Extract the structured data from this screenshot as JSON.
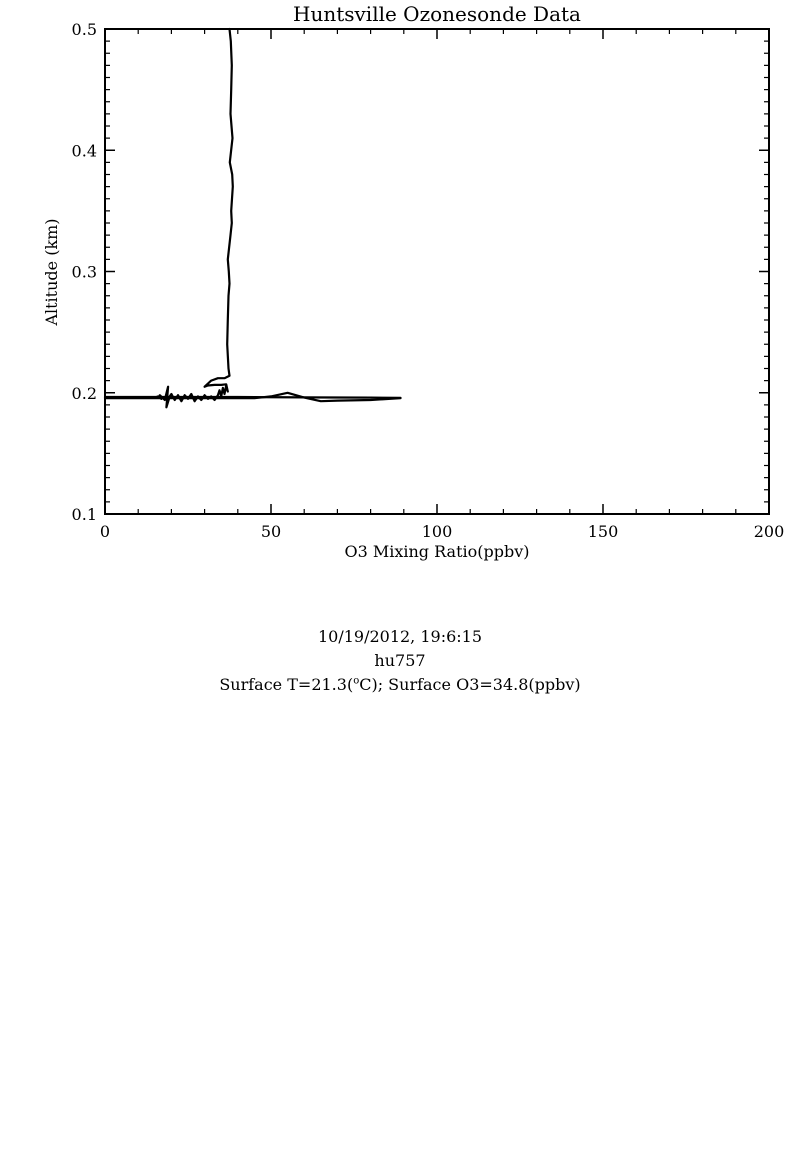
{
  "chart_data": {
    "type": "line",
    "title": "Huntsville Ozonesonde Data",
    "xlabel": "O3 Mixing Ratio(ppbv)",
    "ylabel": "Altitude (km)",
    "xlim": [
      0,
      200
    ],
    "ylim": [
      0.1,
      0.5
    ],
    "x_ticks": [
      "0",
      "50",
      "100",
      "150",
      "200"
    ],
    "y_ticks": [
      "0.1",
      "0.2",
      "0.3",
      "0.4",
      "0.5"
    ],
    "grid": false,
    "series": [
      {
        "color": "#000000",
        "x": [
          0,
          15,
          16,
          17,
          16.5,
          18,
          19,
          18.5,
          19.5,
          20,
          21,
          22,
          23,
          24,
          25,
          26,
          27,
          28,
          29,
          30,
          31,
          32,
          33,
          34,
          34.5,
          35,
          35.5,
          36,
          36.5,
          37,
          36.5,
          35,
          33,
          31,
          30,
          32,
          34,
          36,
          37.5,
          37.2,
          36.8,
          37,
          37.2,
          37.5,
          37.3,
          37,
          37.8,
          38.2,
          38,
          38.5,
          38.3,
          37.6,
          38.4,
          38.1,
          37.8,
          38,
          38.2,
          37.9,
          37.5
        ],
        "y": [
          0.196,
          0.196,
          0.197,
          0.195,
          0.198,
          0.194,
          0.205,
          0.188,
          0.197,
          0.199,
          0.194,
          0.198,
          0.193,
          0.198,
          0.195,
          0.199,
          0.193,
          0.197,
          0.194,
          0.198,
          0.195,
          0.197,
          0.194,
          0.198,
          0.202,
          0.197,
          0.204,
          0.199,
          0.206,
          0.201,
          0.207,
          0.2065,
          0.2065,
          0.206,
          0.205,
          0.21,
          0.212,
          0.212,
          0.214,
          0.22,
          0.24,
          0.26,
          0.28,
          0.29,
          0.3,
          0.31,
          0.33,
          0.34,
          0.35,
          0.37,
          0.38,
          0.39,
          0.41,
          0.42,
          0.43,
          0.45,
          0.47,
          0.49,
          0.5
        ]
      },
      {
        "color": "#000000",
        "x": [
          0,
          20,
          30,
          38,
          45,
          50,
          55,
          60,
          65,
          70,
          80,
          89
        ],
        "y": [
          0.1955,
          0.1955,
          0.1955,
          0.1955,
          0.1955,
          0.197,
          0.2,
          0.196,
          0.193,
          0.1935,
          0.194,
          0.1955
        ]
      },
      {
        "color": "#000000",
        "x": [
          0,
          20,
          40,
          60,
          80,
          89
        ],
        "y": [
          0.1965,
          0.1965,
          0.1965,
          0.1962,
          0.196,
          0.1958
        ]
      }
    ]
  },
  "caption": {
    "date_time": "10/19/2012, 19:6:15",
    "sonde_id": "hu757",
    "surface_t_prefix": "Surface T=21.3(",
    "surface_t_sup": "o",
    "surface_t_suffix": "C); Surface O3=34.8(ppbv)"
  }
}
